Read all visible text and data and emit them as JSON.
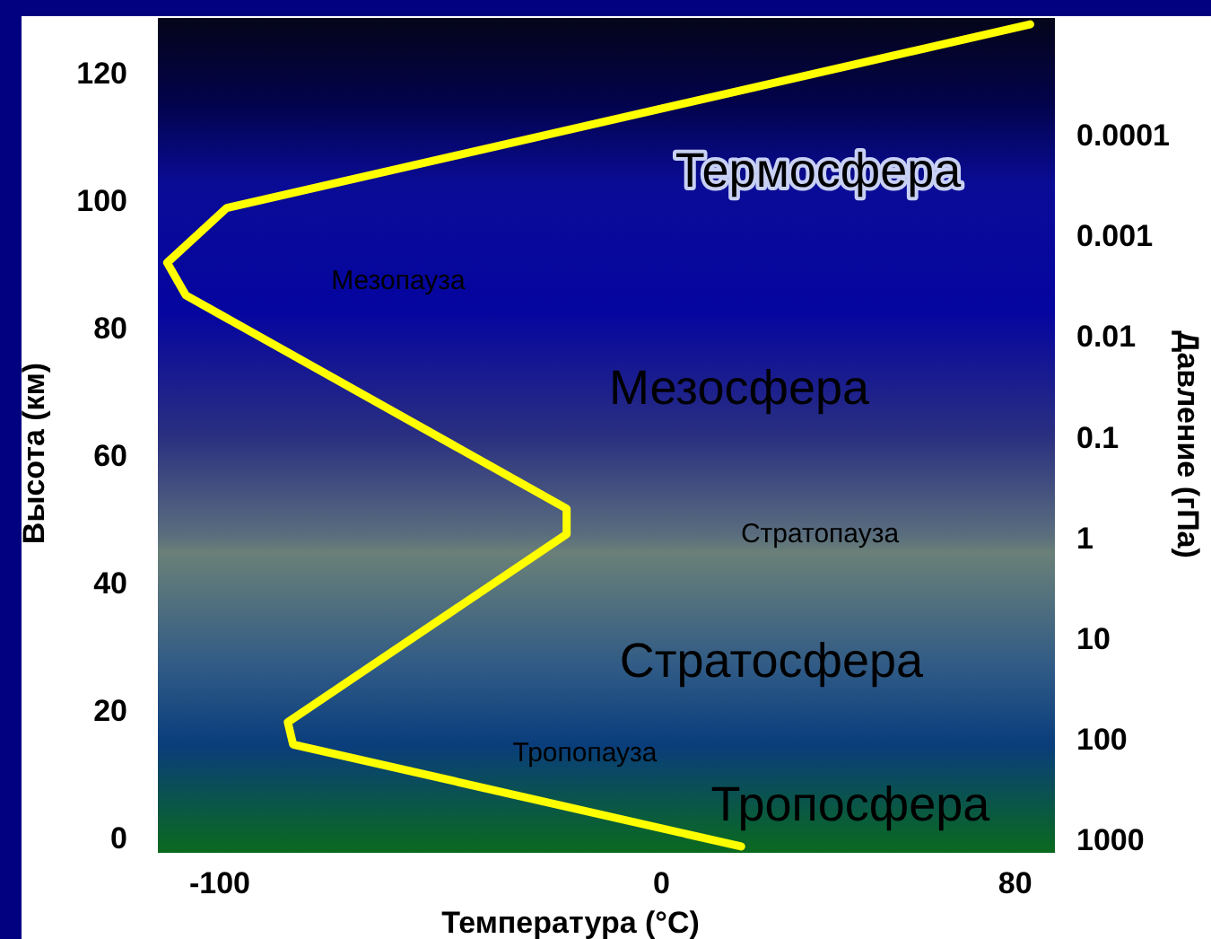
{
  "chart_data": {
    "type": "line",
    "xlabel": "Температура (°C)",
    "ylabel": "Высота (км)",
    "y2label": "Давление (гПа)",
    "xlim": [
      -114,
      89
    ],
    "xticks": [
      -100,
      0,
      80
    ],
    "ylim": [
      -2,
      129
    ],
    "yticks": [
      0,
      20,
      40,
      60,
      80,
      100,
      120
    ],
    "y2lim": [
      1270,
      6.5e-06
    ],
    "y2ticks": [
      1000,
      100,
      10,
      1,
      0.1,
      0.01,
      0.001,
      0.0001
    ],
    "log": "y2",
    "grid": false,
    "series": [
      {
        "color": "#ffff00",
        "line_style": "solid",
        "marker": "none",
        "x": [
          18,
          -83.4,
          -84.6,
          -21.5,
          -21.5,
          -107.7,
          -111.9,
          -98.4,
          83.4
        ],
        "values": [
          -1,
          15,
          18.5,
          48,
          52,
          85.5,
          90.6,
          99.2,
          128
        ]
      }
    ],
    "annotations": [
      "Термосфера",
      "Мезопауза",
      "Мезосфера",
      "Стратопауза",
      "Стратосфера",
      "Тропопауза",
      "Тропосфера"
    ]
  }
}
